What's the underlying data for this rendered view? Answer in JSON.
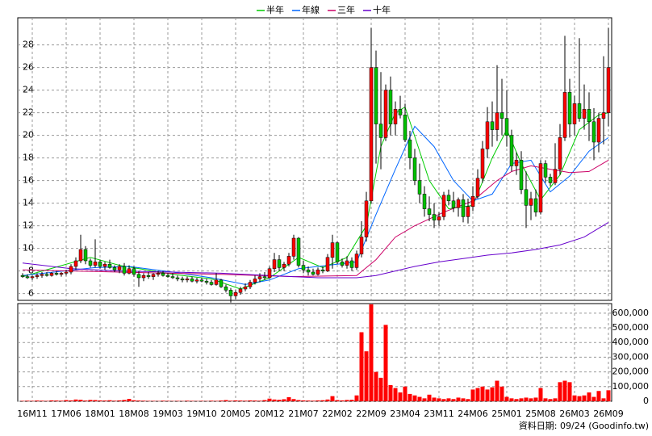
{
  "chart_data": {
    "type": "candlestick",
    "legend": "top",
    "categories": [
      null,
      null,
      "16M11",
      null,
      null,
      null,
      null,
      null,
      null,
      "17M06",
      null,
      null,
      null,
      null,
      null,
      null,
      "18M01",
      null,
      null,
      null,
      null,
      null,
      null,
      "18M08",
      null,
      null,
      null,
      null,
      null,
      null,
      "19M03",
      null,
      null,
      null,
      null,
      null,
      null,
      "19M10",
      null,
      null,
      null,
      null,
      null,
      null,
      "20M05",
      null,
      null,
      null,
      null,
      null,
      null,
      "20M12",
      null,
      null,
      null,
      null,
      null,
      null,
      "21M07",
      null,
      null,
      null,
      null,
      null,
      null,
      "22M02",
      null,
      null,
      null,
      null,
      null,
      null,
      "22M09",
      null,
      null,
      null,
      null,
      null,
      null,
      "23M04",
      null,
      null,
      null,
      null,
      null,
      null,
      "23M11",
      null,
      null,
      null,
      null,
      null,
      null,
      "24M06",
      null,
      null,
      null,
      null,
      null,
      null,
      "25M01",
      null,
      null,
      null,
      null,
      null,
      null,
      "25M08",
      null,
      null,
      null,
      null,
      null,
      null,
      "26M03",
      null,
      null,
      null,
      null,
      null,
      null,
      "26M09"
    ],
    "candles": [
      [
        7.6,
        7.8,
        7.4,
        7.5
      ],
      [
        7.5,
        7.7,
        7.3,
        7.4
      ],
      [
        7.4,
        7.6,
        7.2,
        7.5
      ],
      [
        7.5,
        7.8,
        7.3,
        7.6
      ],
      [
        7.6,
        7.9,
        7.4,
        7.7
      ],
      [
        7.7,
        7.9,
        7.5,
        7.6
      ],
      [
        7.6,
        7.9,
        7.5,
        7.8
      ],
      [
        7.8,
        8.0,
        7.6,
        7.7
      ],
      [
        7.7,
        7.9,
        7.5,
        7.8
      ],
      [
        7.8,
        8.1,
        7.6,
        7.9
      ],
      [
        7.9,
        8.6,
        7.7,
        8.4
      ],
      [
        8.4,
        9.2,
        8.1,
        8.9
      ],
      [
        8.9,
        11.2,
        8.7,
        9.9
      ],
      [
        9.9,
        10.2,
        8.6,
        8.9
      ],
      [
        8.9,
        9.1,
        8.3,
        8.5
      ],
      [
        8.5,
        10.8,
        8.3,
        8.8
      ],
      [
        8.8,
        9.0,
        8.2,
        8.4
      ],
      [
        8.4,
        8.8,
        8.1,
        8.6
      ],
      [
        8.6,
        9.0,
        8.2,
        8.3
      ],
      [
        8.3,
        8.5,
        7.9,
        8.1
      ],
      [
        8.1,
        8.6,
        7.8,
        8.4
      ],
      [
        8.4,
        8.7,
        7.6,
        7.8
      ],
      [
        7.8,
        8.5,
        7.7,
        8.2
      ],
      [
        8.2,
        8.4,
        7.5,
        7.7
      ],
      [
        7.7,
        8.0,
        6.6,
        7.4
      ],
      [
        7.4,
        7.8,
        7.1,
        7.6
      ],
      [
        7.6,
        7.9,
        7.3,
        7.5
      ],
      [
        7.5,
        7.8,
        7.2,
        7.7
      ],
      [
        7.7,
        8.0,
        7.5,
        7.8
      ],
      [
        7.8,
        8.0,
        7.5,
        7.6
      ],
      [
        7.6,
        7.8,
        7.4,
        7.5
      ],
      [
        7.5,
        7.8,
        7.3,
        7.4
      ],
      [
        7.4,
        7.6,
        7.1,
        7.3
      ],
      [
        7.3,
        7.5,
        7.0,
        7.2
      ],
      [
        7.2,
        7.5,
        7.0,
        7.3
      ],
      [
        7.3,
        7.5,
        7.0,
        7.1
      ],
      [
        7.1,
        7.4,
        6.9,
        7.2
      ],
      [
        7.2,
        7.4,
        7.0,
        7.1
      ],
      [
        7.1,
        7.3,
        6.8,
        7.0
      ],
      [
        7.0,
        7.2,
        6.7,
        6.8
      ],
      [
        6.8,
        7.8,
        6.7,
        7.2
      ],
      [
        7.2,
        7.3,
        6.5,
        6.6
      ],
      [
        6.6,
        6.8,
        6.1,
        6.3
      ],
      [
        6.3,
        6.5,
        5.2,
        5.8
      ],
      [
        5.8,
        6.3,
        5.5,
        6.1
      ],
      [
        6.1,
        6.6,
        5.9,
        6.4
      ],
      [
        6.4,
        6.9,
        6.2,
        6.6
      ],
      [
        6.6,
        7.2,
        6.4,
        7.0
      ],
      [
        7.0,
        7.6,
        6.8,
        7.3
      ],
      [
        7.3,
        7.8,
        7.0,
        7.5
      ],
      [
        7.5,
        7.9,
        7.2,
        7.4
      ],
      [
        7.4,
        8.4,
        7.3,
        8.2
      ],
      [
        8.2,
        9.6,
        7.9,
        9.0
      ],
      [
        9.0,
        9.4,
        8.0,
        8.3
      ],
      [
        8.3,
        8.8,
        8.0,
        8.6
      ],
      [
        8.6,
        9.6,
        8.4,
        9.3
      ],
      [
        9.3,
        11.2,
        9.0,
        10.9
      ],
      [
        10.9,
        11.0,
        8.3,
        8.5
      ],
      [
        8.5,
        8.9,
        7.8,
        8.1
      ],
      [
        8.1,
        8.4,
        7.6,
        7.9
      ],
      [
        7.9,
        8.2,
        7.6,
        7.7
      ],
      [
        7.7,
        8.3,
        7.6,
        8.1
      ],
      [
        8.1,
        8.4,
        7.8,
        8.0
      ],
      [
        8.0,
        9.5,
        7.9,
        9.2
      ],
      [
        9.2,
        11.2,
        8.2,
        10.5
      ],
      [
        10.5,
        10.6,
        8.6,
        8.8
      ],
      [
        8.8,
        9.1,
        8.3,
        8.5
      ],
      [
        8.5,
        9.3,
        8.2,
        8.9
      ],
      [
        8.9,
        9.2,
        8.0,
        8.3
      ],
      [
        8.3,
        9.8,
        8.1,
        9.5
      ],
      [
        9.5,
        12.4,
        9.2,
        11.0
      ],
      [
        11.0,
        15.0,
        10.6,
        14.2
      ],
      [
        14.2,
        29.5,
        14.0,
        26.0
      ],
      [
        26.0,
        27.5,
        17.5,
        21.0
      ],
      [
        21.0,
        25.6,
        17.0,
        19.8
      ],
      [
        19.8,
        24.5,
        19.5,
        24.0
      ],
      [
        24.0,
        25.2,
        20.0,
        21.0
      ],
      [
        21.0,
        23.0,
        20.0,
        22.3
      ],
      [
        22.3,
        23.5,
        21.5,
        21.8
      ],
      [
        21.8,
        22.8,
        19.4,
        19.6
      ],
      [
        19.6,
        20.4,
        17.0,
        18.0
      ],
      [
        18.0,
        18.8,
        15.6,
        16.0
      ],
      [
        16.0,
        17.5,
        14.0,
        14.8
      ],
      [
        14.8,
        15.5,
        12.8,
        13.5
      ],
      [
        13.5,
        14.6,
        12.4,
        13.0
      ],
      [
        13.0,
        14.0,
        11.8,
        12.5
      ],
      [
        12.5,
        13.2,
        12.0,
        12.8
      ],
      [
        12.8,
        15.0,
        12.5,
        14.7
      ],
      [
        14.7,
        15.2,
        13.8,
        14.2
      ],
      [
        14.2,
        15.0,
        13.2,
        13.6
      ],
      [
        13.6,
        14.5,
        12.8,
        14.3
      ],
      [
        14.3,
        14.8,
        12.3,
        12.8
      ],
      [
        12.8,
        14.4,
        12.2,
        13.7
      ],
      [
        13.7,
        15.5,
        13.3,
        14.6
      ],
      [
        14.6,
        17.0,
        14.4,
        16.2
      ],
      [
        16.2,
        19.5,
        15.8,
        18.8
      ],
      [
        18.8,
        22.5,
        18.0,
        21.2
      ],
      [
        21.2,
        23.0,
        19.0,
        20.5
      ],
      [
        20.5,
        26.2,
        19.5,
        22.0
      ],
      [
        22.0,
        25.0,
        20.0,
        21.5
      ],
      [
        21.5,
        24.0,
        19.0,
        20.0
      ],
      [
        20.0,
        20.5,
        16.8,
        17.3
      ],
      [
        17.3,
        18.5,
        16.5,
        17.8
      ],
      [
        17.8,
        18.6,
        14.8,
        15.2
      ],
      [
        15.2,
        16.8,
        11.8,
        13.8
      ],
      [
        13.8,
        15.0,
        12.5,
        14.4
      ],
      [
        14.4,
        15.2,
        12.8,
        13.2
      ],
      [
        13.2,
        17.8,
        13.0,
        17.5
      ],
      [
        17.5,
        17.8,
        15.8,
        16.3
      ],
      [
        16.3,
        16.6,
        15.5,
        15.8
      ],
      [
        15.8,
        19.3,
        15.6,
        17.0
      ],
      [
        17.0,
        21.0,
        16.5,
        19.8
      ],
      [
        19.8,
        28.8,
        19.5,
        23.8
      ],
      [
        23.8,
        25.0,
        19.8,
        21.0
      ],
      [
        21.0,
        23.5,
        20.0,
        22.8
      ],
      [
        22.8,
        28.6,
        21.2,
        21.5
      ],
      [
        21.5,
        24.5,
        20.5,
        22.3
      ],
      [
        22.3,
        23.8,
        19.5,
        21.2
      ],
      [
        21.2,
        22.4,
        17.8,
        19.4
      ],
      [
        19.4,
        22.0,
        18.5,
        21.5
      ],
      [
        21.5,
        27.0,
        19.2,
        22.0
      ],
      [
        22.0,
        29.5,
        20.8,
        26.0
      ]
    ],
    "up_color": "#ff0000",
    "down_color": "#00c000",
    "ylim": [
      5.4,
      30.4
    ],
    "yticks": [
      6,
      8,
      10,
      12,
      14,
      16,
      18,
      20,
      22,
      24,
      26,
      28
    ],
    "grid": true,
    "series": [
      {
        "name": "半年",
        "color": "#00cc00",
        "x": [
          0,
          14,
          20,
          31,
          39,
          45,
          51,
          57,
          62,
          67,
          71,
          74,
          77,
          79,
          84,
          88,
          93,
          97,
          100,
          103,
          107,
          111,
          115,
          119,
          121
        ],
        "values": [
          7.5,
          9.2,
          8.5,
          7.7,
          7.3,
          6.4,
          7.4,
          9.2,
          8.3,
          9.2,
          12,
          19,
          22,
          22.5,
          16,
          13.5,
          13.8,
          18,
          20.5,
          17.5,
          14.3,
          16.5,
          20.5,
          21.8,
          22
        ]
      },
      {
        "name": "年線",
        "color": "#0066ff",
        "x": [
          0,
          15,
          22,
          31,
          39,
          46,
          51,
          57,
          63,
          69,
          73,
          77,
          81,
          85,
          89,
          93,
          97,
          101,
          105,
          109,
          113,
          117,
          121
        ],
        "values": [
          7.6,
          8.3,
          8.4,
          7.9,
          7.4,
          6.8,
          7.2,
          8.2,
          8.5,
          8.8,
          13,
          17,
          20.8,
          19,
          16,
          14.2,
          14.8,
          17.5,
          17.8,
          15,
          16.4,
          18.6,
          19.8
        ]
      },
      {
        "name": "三年",
        "color": "#cc0066",
        "x": [
          0,
          20,
          41,
          56,
          69,
          73,
          77,
          81,
          87,
          93,
          98,
          101,
          105,
          109,
          113,
          117,
          121
        ],
        "values": [
          8.1,
          7.9,
          7.7,
          7.5,
          7.6,
          9,
          11,
          12,
          13.2,
          14.2,
          16,
          16.8,
          17.3,
          17,
          16.7,
          16.8,
          17.8
        ]
      },
      {
        "name": "十年",
        "color": "#6600cc",
        "x": [
          0,
          10,
          20,
          31,
          41,
          51,
          61,
          69,
          73,
          77,
          81,
          86,
          91,
          96,
          101,
          106,
          111,
          116,
          121
        ],
        "values": [
          8.7,
          8.2,
          8.0,
          7.9,
          7.8,
          7.6,
          7.4,
          7.4,
          7.6,
          8.0,
          8.4,
          8.8,
          9.1,
          9.4,
          9.6,
          9.9,
          10.3,
          11.0,
          12.3
        ]
      }
    ],
    "volume": {
      "color": "#ff0000",
      "ylim": [
        0,
        665000
      ],
      "yticks": [
        0,
        {
          "value": 100000,
          "label": "100,000"
        },
        {
          "value": 200000,
          "label": "200,000"
        },
        {
          "value": 300000,
          "label": "300,000"
        },
        {
          "value": 400000,
          "label": "400,000"
        },
        {
          "value": 500000,
          "label": "500,000"
        },
        {
          "value": 600000,
          "label": "600,000"
        }
      ],
      "values": [
        3000,
        4000,
        3000,
        5000,
        4000,
        3000,
        6000,
        5000,
        4000,
        8000,
        6000,
        12000,
        10000,
        5000,
        9000,
        8000,
        6000,
        5000,
        7000,
        4000,
        6000,
        9000,
        16000,
        7000,
        5000,
        4000,
        3000,
        3000,
        2000,
        4000,
        3000,
        2000,
        3000,
        2000,
        4000,
        3000,
        2000,
        3000,
        2000,
        4000,
        3000,
        5000,
        8000,
        4000,
        6000,
        5000,
        4000,
        6000,
        5000,
        4000,
        8000,
        18000,
        12000,
        10000,
        14000,
        28000,
        15000,
        8000,
        6000,
        5000,
        4000,
        6000,
        7000,
        12000,
        35000,
        8000,
        6000,
        9000,
        10000,
        40000,
        470000,
        340000,
        660000,
        200000,
        160000,
        520000,
        110000,
        90000,
        60000,
        100000,
        50000,
        40000,
        30000,
        20000,
        45000,
        25000,
        20000,
        15000,
        20000,
        15000,
        25000,
        20000,
        15000,
        80000,
        90000,
        100000,
        80000,
        95000,
        140000,
        100000,
        30000,
        20000,
        15000,
        20000,
        25000,
        20000,
        25000,
        90000,
        20000,
        15000,
        20000,
        130000,
        140000,
        130000,
        40000,
        35000,
        40000,
        60000,
        30000,
        70000,
        20000,
        75000
      ]
    }
  },
  "footer": "資料日期: 09/24  (Goodinfo.tw)"
}
